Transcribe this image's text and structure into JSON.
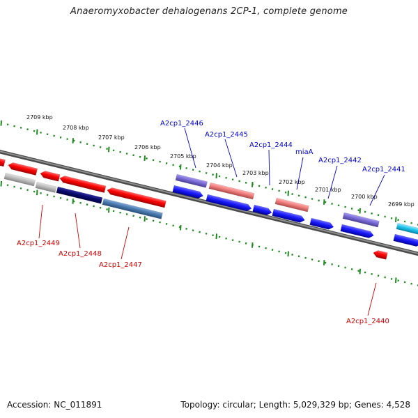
{
  "title": "Anaeromyxobacter dehalogenans 2CP-1, complete genome",
  "footer": {
    "accession": "Accession: NC_011891",
    "topology": "Topology: circular; Length: 5,029,329 bp; Genes: 4,528"
  },
  "scale_ticks": [
    "2709 kbp",
    "2708 kbp",
    "2707 kbp",
    "2706 kbp",
    "2705 kbp",
    "2704 kbp",
    "2703 kbp",
    "2702 kbp",
    "2701 kbp",
    "2700 kbp",
    "2699 kbp"
  ],
  "forward_gene_labels": [
    "A2cp1_2446",
    "A2cp1_2445",
    "A2cp1_2444",
    "miaA",
    "A2cp1_2442",
    "A2cp1_2441"
  ],
  "reverse_gene_labels": [
    "A2cp1_2449",
    "A2cp1_2448",
    "A2cp1_2447",
    "A2cp1_2440"
  ],
  "colors": {
    "forward_label": "#0000cc",
    "reverse_label": "#cc0000",
    "tick_mark": "#1e8a1e",
    "backbone": "#707070",
    "cds_forward": "#1a1aff",
    "cds_reverse": "#ff0000",
    "gene_feature_blue": "#7b6bd6",
    "gene_feature_red": "#f08080",
    "gene_grey": "#bdbdbd",
    "gene_dark_navy": "#0a0a6e",
    "gene_steel": "#4a7bb0",
    "gene_cyan": "#22c6ee"
  }
}
